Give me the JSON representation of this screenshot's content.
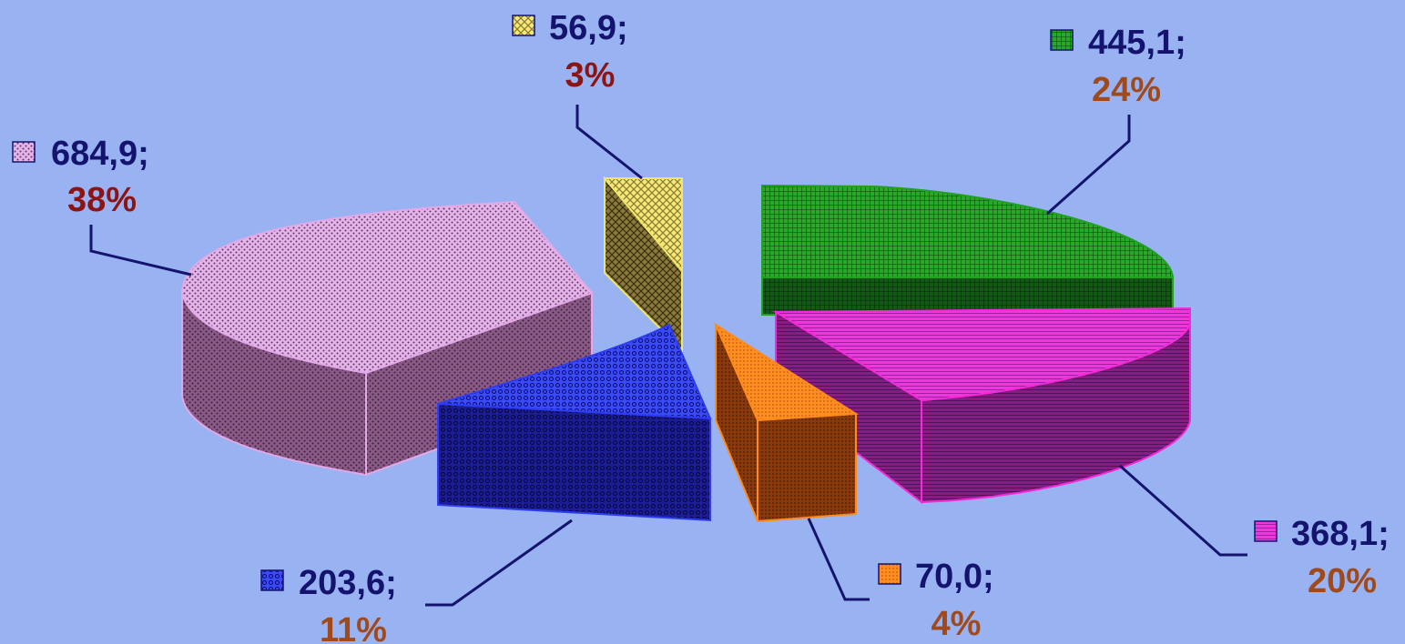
{
  "chart_data": {
    "type": "pie",
    "style": "3d-exploded",
    "title": "",
    "legend": "none",
    "slices": [
      {
        "key": "s684",
        "value": 684.9,
        "value_label": "684,9;",
        "percent_label": "38%",
        "percent": 38,
        "color": "#e2a8e8",
        "side_color": "#8a5a86",
        "pct_color": "#8b1414"
      },
      {
        "key": "s569",
        "value": 56.9,
        "value_label": "56,9;",
        "percent_label": "3%",
        "percent": 3,
        "color": "#f2e66a",
        "side_color": "#8a7a3c",
        "pct_color": "#8b1414"
      },
      {
        "key": "s4451",
        "value": 445.1,
        "value_label": "445,1;",
        "percent_label": "24%",
        "percent": 24,
        "color": "#21a021",
        "side_color": "#0f4f12",
        "pct_color": "#a04a1c"
      },
      {
        "key": "s3681",
        "value": 368.1,
        "value_label": "368,1;",
        "percent_label": "20%",
        "percent": 20,
        "color": "#f22ad8",
        "side_color": "#8a1a86",
        "pct_color": "#a04a1c"
      },
      {
        "key": "s700",
        "value": 70.0,
        "value_label": "70,0;",
        "percent_label": "4%",
        "percent": 4,
        "color": "#ff8a1c",
        "side_color": "#8a3a0a",
        "pct_color": "#a04a1c"
      },
      {
        "key": "s2036",
        "value": 203.6,
        "value_label": "203,6;",
        "percent_label": "11%",
        "percent": 11,
        "color": "#2e3cf2",
        "side_color": "#1a1a90",
        "pct_color": "#a04a1c"
      }
    ]
  }
}
